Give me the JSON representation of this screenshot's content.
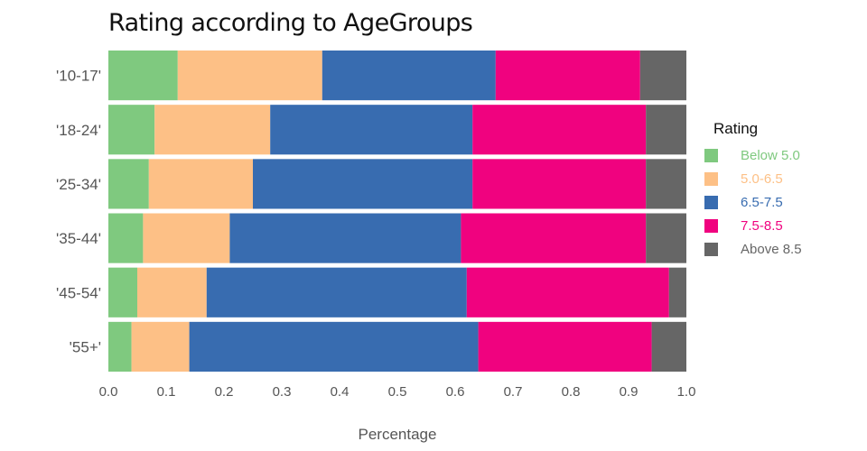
{
  "chart_data": {
    "type": "bar",
    "orientation": "horizontal",
    "stacked": true,
    "title": "Rating according to AgeGroups",
    "xlabel": "Percentage",
    "ylabel": "",
    "xlim": [
      0,
      1
    ],
    "xticks": [
      "0.0",
      "0.1",
      "0.2",
      "0.3",
      "0.4",
      "0.5",
      "0.6",
      "0.7",
      "0.8",
      "0.9",
      "1.0"
    ],
    "categories": [
      "'10-17'",
      "'18-24'",
      "'25-34'",
      "'35-44'",
      "'45-54'",
      "'55+'"
    ],
    "legend_title": "Rating",
    "legend_position": "right",
    "grid": false,
    "series": [
      {
        "name": "Below 5.0",
        "color": "#7fc97f",
        "values": [
          0.12,
          0.08,
          0.07,
          0.06,
          0.05,
          0.04
        ]
      },
      {
        "name": "5.0-6.5",
        "color": "#fdc086",
        "values": [
          0.25,
          0.2,
          0.18,
          0.15,
          0.12,
          0.1
        ]
      },
      {
        "name": "6.5-7.5",
        "color": "#386cb0",
        "values": [
          0.3,
          0.35,
          0.38,
          0.4,
          0.45,
          0.5
        ]
      },
      {
        "name": "7.5-8.5",
        "color": "#f0027f",
        "values": [
          0.25,
          0.3,
          0.3,
          0.32,
          0.35,
          0.3
        ]
      },
      {
        "name": "Above 8.5",
        "color": "#666666",
        "values": [
          0.08,
          0.07,
          0.07,
          0.07,
          0.03,
          0.06
        ]
      }
    ]
  }
}
